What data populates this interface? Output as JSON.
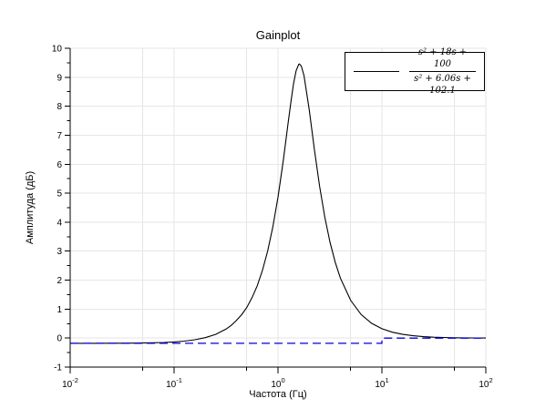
{
  "chart": {
    "title": "Gainplot",
    "xlabel": "Частота (Гц)",
    "ylabel": "Амплитуда (дБ)",
    "legend": {
      "numerator": "s² + 18s + 100",
      "denominator": "s² + 6.06s + 102.1"
    },
    "colors": {
      "exact_curve": "#000000",
      "asymptote_curve": "#0000dd",
      "grid": "#e6e6e6",
      "axis": "#000000",
      "text": "#000000",
      "background": "#ffffff"
    }
  },
  "chart_data": {
    "type": "line",
    "title": "Gainplot",
    "xlabel": "Частота (Гц)",
    "ylabel": "Амплитуда (дБ)",
    "x_scale": "log10",
    "xlim": [
      0.01,
      100
    ],
    "ylim": [
      -1,
      10
    ],
    "x_major_tick_exponents": [
      -2,
      -1,
      0,
      1,
      2
    ],
    "x_minor_tick_values": [
      0.05,
      0.5,
      5,
      50
    ],
    "y_ticks": [
      -1,
      0,
      1,
      2,
      3,
      4,
      5,
      6,
      7,
      8,
      9,
      10
    ],
    "y_minor_tick_step": 0.5,
    "grid": true,
    "legend_position": "top-right",
    "series": [
      {
        "id": "exact-gain-curve",
        "name": "(s² + 18s + 100) / (s² + 6.06s + 102.1)",
        "in_legend": true,
        "color": "#000000",
        "style": "solid",
        "points_log10x_y": [
          [
            -2.0,
            -0.18
          ],
          [
            -1.8,
            -0.179
          ],
          [
            -1.6,
            -0.177
          ],
          [
            -1.4,
            -0.173
          ],
          [
            -1.2,
            -0.161
          ],
          [
            -1.1,
            -0.15
          ],
          [
            -1.0,
            -0.132
          ],
          [
            -0.9,
            -0.103
          ],
          [
            -0.8,
            -0.058
          ],
          [
            -0.7,
            0.015
          ],
          [
            -0.6,
            0.129
          ],
          [
            -0.5,
            0.311
          ],
          [
            -0.45,
            0.44
          ],
          [
            -0.4,
            0.61
          ],
          [
            -0.35,
            0.807
          ],
          [
            -0.3,
            1.06
          ],
          [
            -0.25,
            1.394
          ],
          [
            -0.2,
            1.804
          ],
          [
            -0.15,
            2.335
          ],
          [
            -0.1,
            2.996
          ],
          [
            -0.05,
            3.831
          ],
          [
            0.0,
            4.862
          ],
          [
            0.05,
            6.103
          ],
          [
            0.1,
            7.494
          ],
          [
            0.125,
            8.177
          ],
          [
            0.15,
            8.786
          ],
          [
            0.175,
            9.231
          ],
          [
            0.2,
            9.446
          ],
          [
            0.207,
            9.457
          ],
          [
            0.225,
            9.383
          ],
          [
            0.25,
            9.059
          ],
          [
            0.3,
            7.894
          ],
          [
            0.35,
            6.515
          ],
          [
            0.4,
            5.247
          ],
          [
            0.45,
            4.181
          ],
          [
            0.5,
            3.314
          ],
          [
            0.55,
            2.623
          ],
          [
            0.6,
            2.075
          ],
          [
            0.7,
            1.299
          ],
          [
            0.8,
            0.815
          ],
          [
            0.9,
            0.512
          ],
          [
            1.0,
            0.322
          ],
          [
            1.1,
            0.203
          ],
          [
            1.2,
            0.128
          ],
          [
            1.3,
            0.081
          ],
          [
            1.4,
            0.051
          ],
          [
            1.5,
            0.032
          ],
          [
            1.6,
            0.02
          ],
          [
            1.7,
            0.013
          ],
          [
            1.8,
            0.008
          ],
          [
            1.9,
            0.005
          ],
          [
            2.0,
            0.003
          ]
        ]
      },
      {
        "id": "asymptotic-gain-curve",
        "name": "",
        "in_legend": false,
        "color": "#0000dd",
        "style": "dashed",
        "points_log10x_y": [
          [
            -2.0,
            -0.18
          ],
          [
            1.0,
            -0.18
          ],
          [
            1.0,
            0.0
          ],
          [
            2.0,
            0.0
          ]
        ]
      }
    ]
  }
}
